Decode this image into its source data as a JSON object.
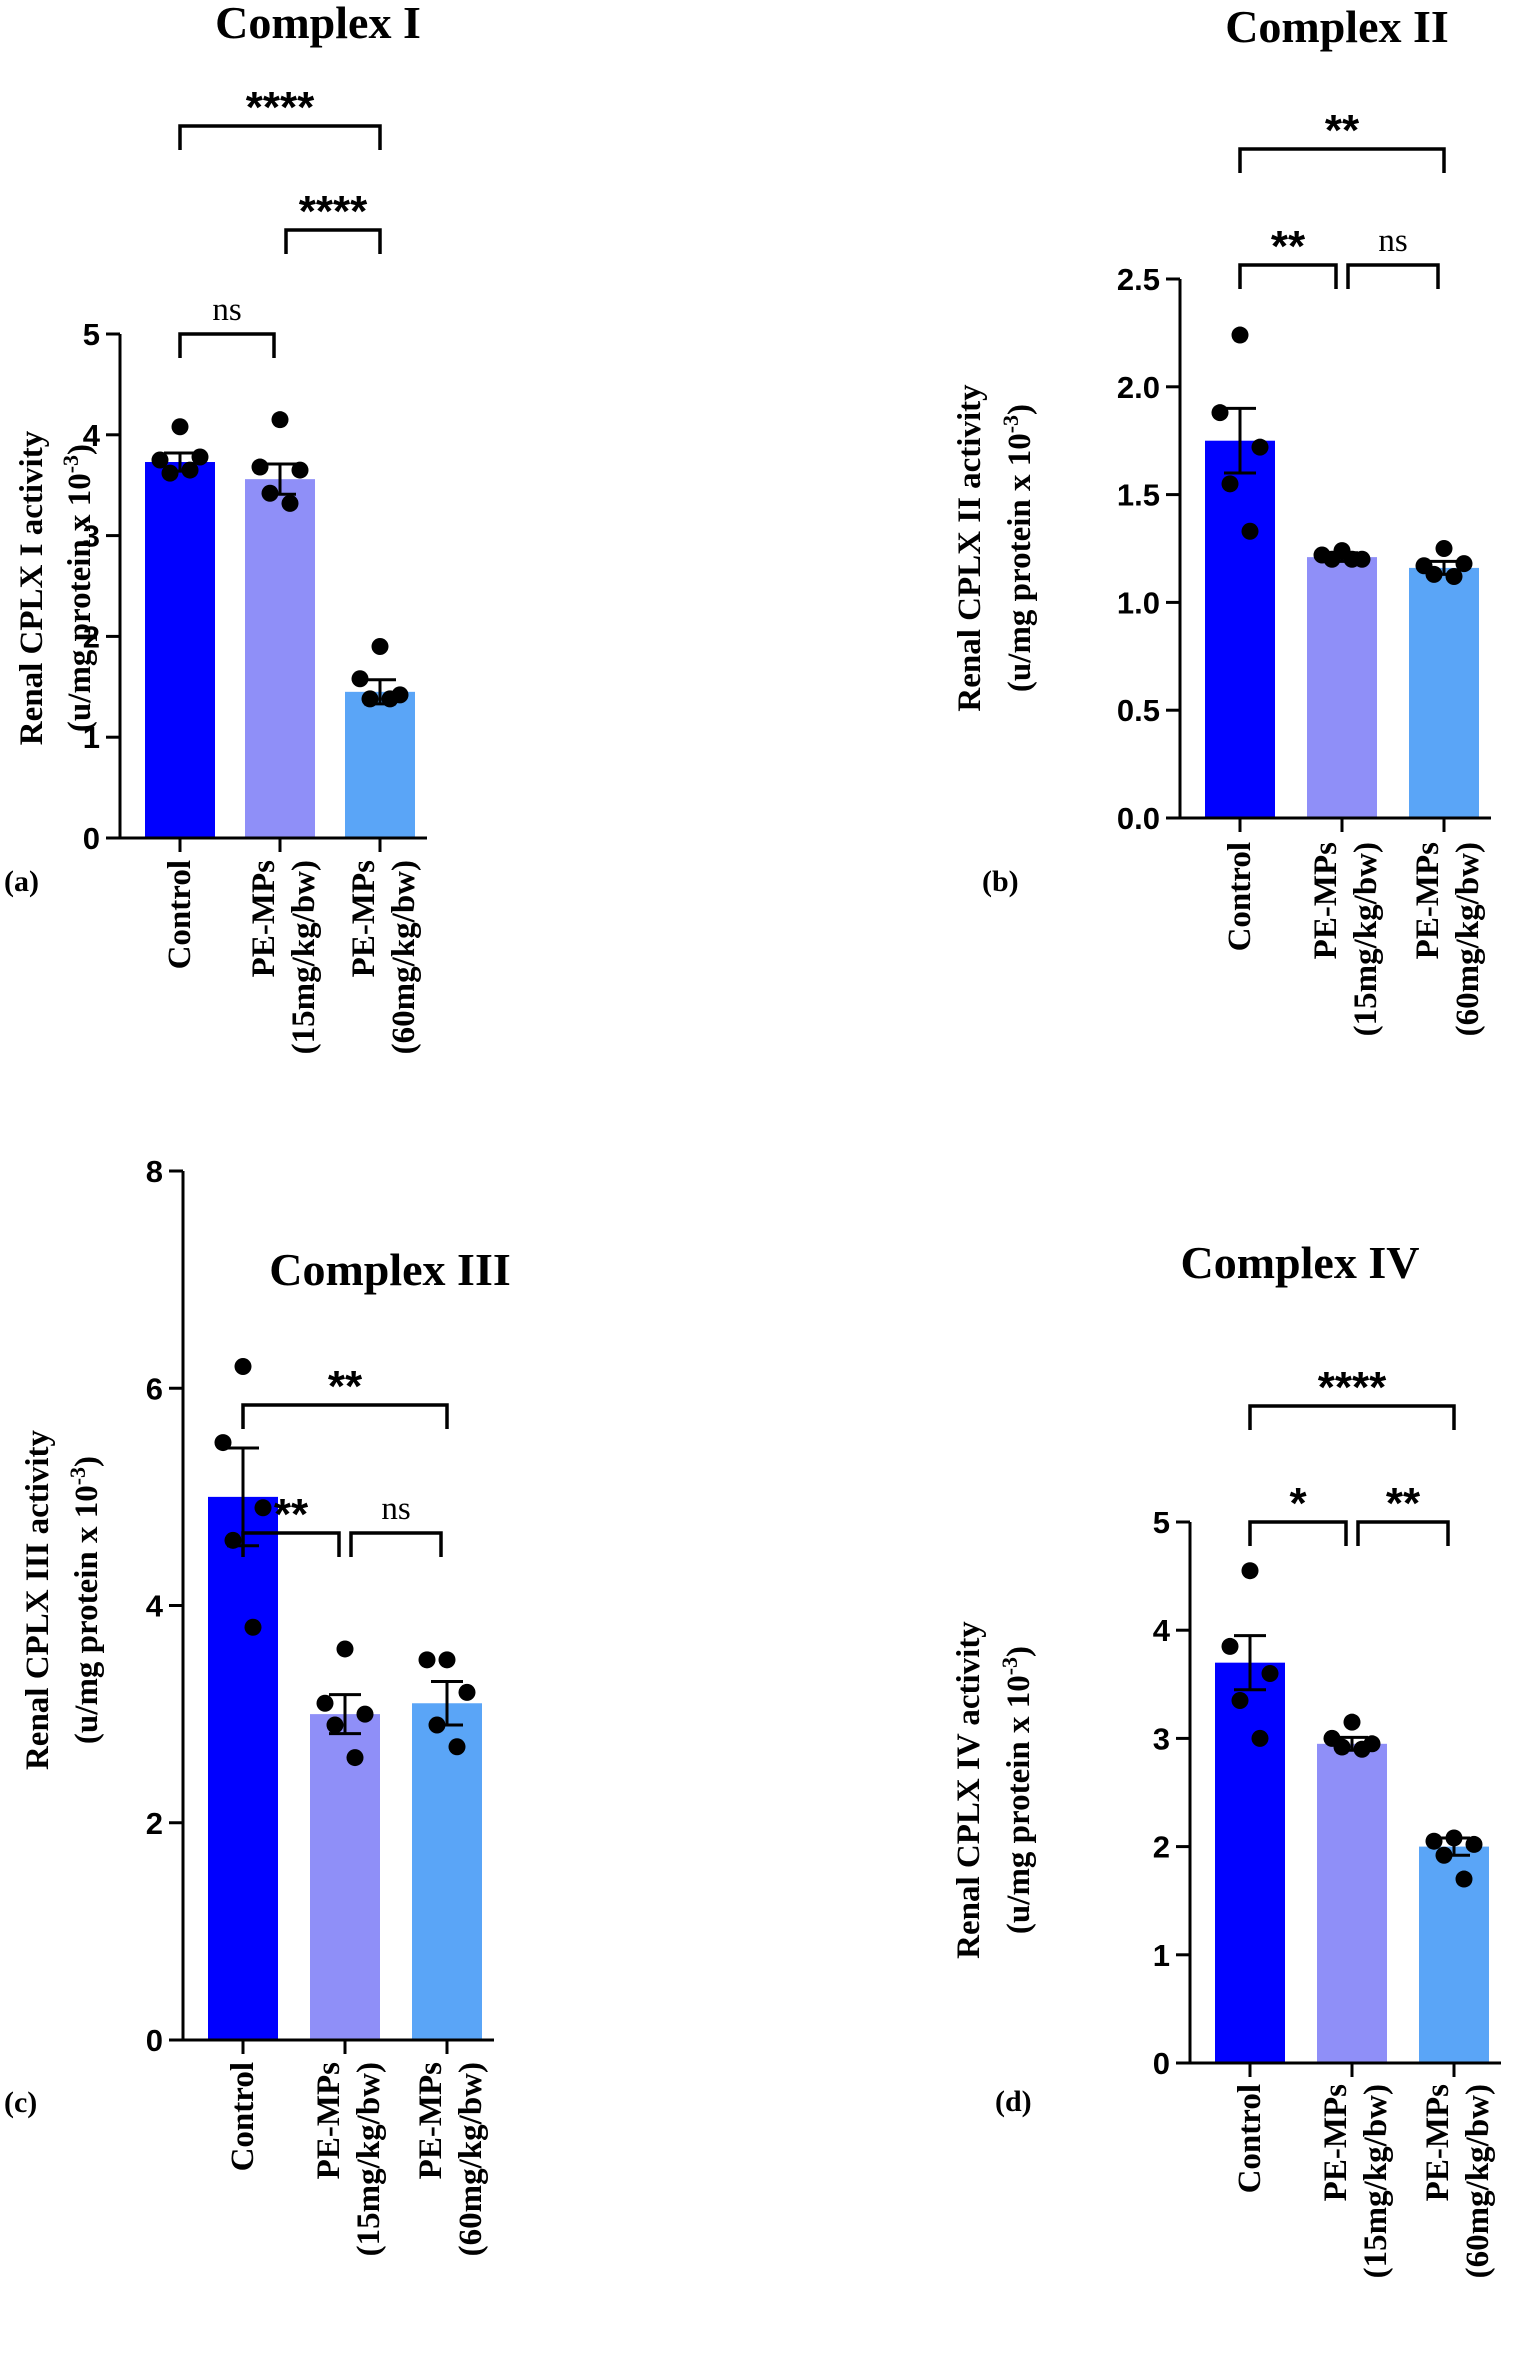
{
  "figure": {
    "groups": [
      "Control",
      "PE-MPs\n(15mg/kg/bw)",
      "PE-MPs\n(60mg/kg/bw)"
    ],
    "colors": {
      "control": "#0000ff",
      "pe15": "#8f8ff8",
      "pe60": "#5aa5f7",
      "axis": "#000000"
    }
  },
  "chart_data": [
    {
      "type": "bar",
      "panel": "(a)",
      "title": "Complex I",
      "ylabel": "Renal CPLX I activity",
      "ylabel2": "(u/mg protein x 10",
      "ylabel_exp": "-3",
      "ylabel_end": ")",
      "categories": [
        "Control",
        "PE-MPs (15mg/kg/bw)",
        "PE-MPs (60mg/kg/bw)"
      ],
      "values": [
        3.73,
        3.56,
        1.45
      ],
      "sem": [
        0.09,
        0.15,
        0.12
      ],
      "points": [
        [
          4.08,
          3.75,
          3.78,
          3.62,
          3.65
        ],
        [
          4.15,
          3.68,
          3.65,
          3.42,
          3.32
        ],
        [
          1.9,
          1.58,
          1.42,
          1.38,
          1.38
        ]
      ],
      "ylim": [
        0,
        5
      ],
      "yticks": [
        "0",
        "1",
        "2",
        "3",
        "4",
        "5"
      ],
      "yticks_values": [
        0,
        1,
        2,
        3,
        4,
        5
      ],
      "comparisons": [
        {
          "from": 0,
          "to": 1,
          "label": "ns",
          "level": 0
        },
        {
          "from": 1,
          "to": 2,
          "label": "****",
          "level": 1
        },
        {
          "from": 0,
          "to": 2,
          "label": "****",
          "level": 2
        }
      ]
    },
    {
      "type": "bar",
      "panel": "(b)",
      "title": "Complex II",
      "ylabel": "Renal CPLX II activity",
      "ylabel2": "(u/mg protein x 10",
      "ylabel_exp": "-3",
      "ylabel_end": ")",
      "categories": [
        "Control",
        "PE-MPs (15mg/kg/bw)",
        "PE-MPs (60mg/kg/bw)"
      ],
      "values": [
        1.75,
        1.21,
        1.16
      ],
      "sem": [
        0.15,
        0.02,
        0.03
      ],
      "points": [
        [
          2.24,
          1.88,
          1.72,
          1.55,
          1.33
        ],
        [
          1.24,
          1.22,
          1.2,
          1.2,
          1.2
        ],
        [
          1.25,
          1.17,
          1.18,
          1.13,
          1.12
        ]
      ],
      "ylim": [
        0,
        2.5
      ],
      "yticks": [
        "0.0",
        "0.5",
        "1.0",
        "1.5",
        "2.0",
        "2.5"
      ],
      "yticks_values": [
        0,
        0.5,
        1,
        1.5,
        2,
        2.5
      ],
      "comparisons": [
        {
          "from": 0,
          "to": 1,
          "label": "**",
          "level": 0
        },
        {
          "from": 1,
          "to": 2,
          "label": "ns",
          "level": 0
        },
        {
          "from": 0,
          "to": 2,
          "label": "**",
          "level": 1
        }
      ]
    },
    {
      "type": "bar",
      "panel": "(c)",
      "title": "Complex III",
      "ylabel": "Renal CPLX III activity",
      "ylabel2": "(u/mg protein x 10",
      "ylabel_exp": "-3",
      "ylabel_end": ")",
      "categories": [
        "Control",
        "PE-MPs (15mg/kg/bw)",
        "PE-MPs (60mg/kg/bw)"
      ],
      "values": [
        5.0,
        3.0,
        3.1
      ],
      "sem": [
        0.45,
        0.18,
        0.2
      ],
      "points": [
        [
          6.2,
          5.5,
          4.9,
          4.6,
          3.8
        ],
        [
          3.6,
          3.1,
          3.0,
          2.9,
          2.6
        ],
        [
          3.5,
          3.5,
          3.2,
          2.9,
          2.7
        ]
      ],
      "ylim": [
        0,
        8
      ],
      "yticks": [
        "0",
        "2",
        "4",
        "6",
        "8"
      ],
      "yticks_values": [
        0,
        2,
        4,
        6,
        8
      ],
      "comparisons": [
        {
          "from": 0,
          "to": 1,
          "label": "**",
          "level": 0
        },
        {
          "from": 1,
          "to": 2,
          "label": "ns",
          "level": 0
        },
        {
          "from": 0,
          "to": 2,
          "label": "**",
          "level": 1
        }
      ]
    },
    {
      "type": "bar",
      "panel": "(d)",
      "title": "Complex IV",
      "ylabel": "Renal CPLX IV activity",
      "ylabel2": "(u/mg protein x 10",
      "ylabel_exp": "-3",
      "ylabel_end": ")",
      "categories": [
        "Control",
        "PE-MPs (15mg/kg/bw)",
        "PE-MPs (60mg/kg/bw)"
      ],
      "values": [
        3.7,
        2.95,
        2.0
      ],
      "sem": [
        0.25,
        0.06,
        0.08
      ],
      "points": [
        [
          4.55,
          3.85,
          3.6,
          3.35,
          3.0
        ],
        [
          3.15,
          3.0,
          2.95,
          2.92,
          2.9
        ],
        [
          2.08,
          2.05,
          2.02,
          1.92,
          1.7
        ]
      ],
      "ylim": [
        0,
        5
      ],
      "yticks": [
        "0",
        "1",
        "2",
        "3",
        "4",
        "5"
      ],
      "yticks_values": [
        0,
        1,
        2,
        3,
        4,
        5
      ],
      "comparisons": [
        {
          "from": 0,
          "to": 1,
          "label": "*",
          "level": 0
        },
        {
          "from": 1,
          "to": 2,
          "label": "**",
          "level": 0
        },
        {
          "from": 0,
          "to": 2,
          "label": "****",
          "level": 1
        }
      ]
    }
  ]
}
